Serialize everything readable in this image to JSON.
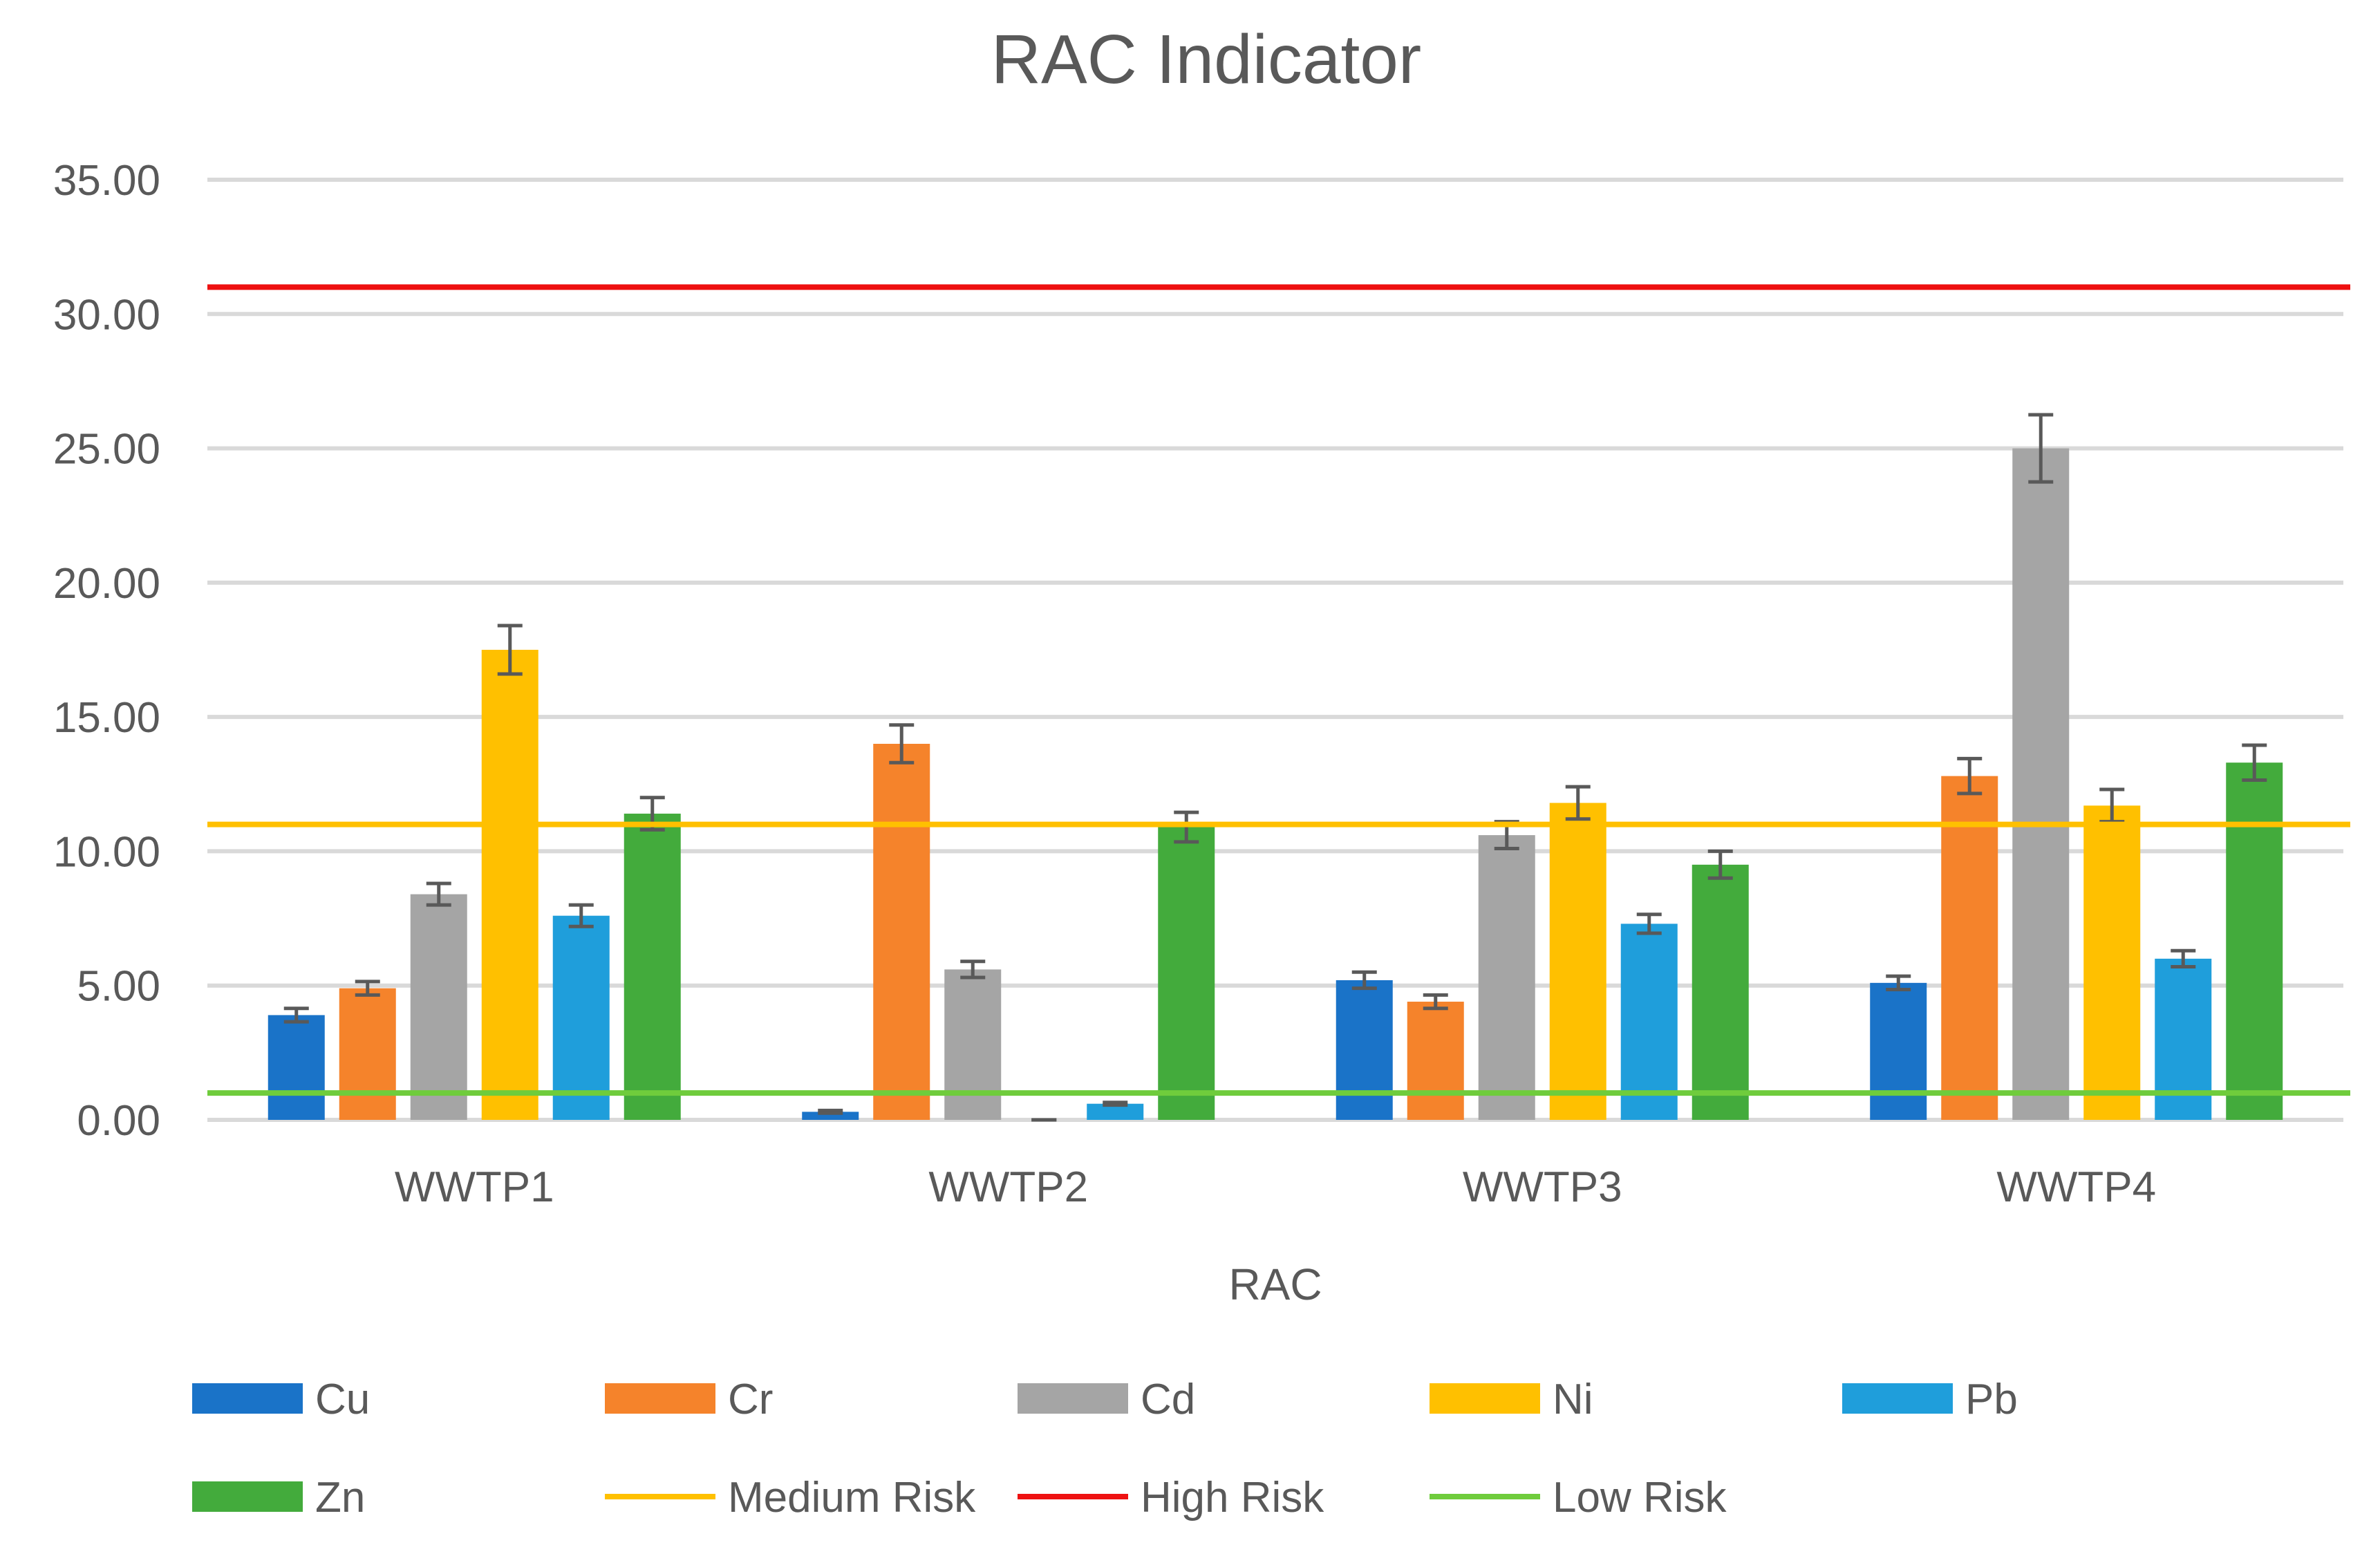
{
  "chart_data": {
    "type": "bar",
    "title": "RAC Indicator",
    "xlabel": "RAC",
    "ylabel": "",
    "ylim": [
      0,
      35
    ],
    "yticks": [
      0,
      5,
      10,
      15,
      20,
      25,
      30,
      35
    ],
    "ytick_labels": [
      "0.00",
      "5.00",
      "10.00",
      "15.00",
      "20.00",
      "25.00",
      "30.00",
      "35.00"
    ],
    "grid": true,
    "legend_position": "bottom",
    "categories": [
      "WWTP1",
      "WWTP2",
      "WWTP3",
      "WWTP4"
    ],
    "series": [
      {
        "name": "Cu",
        "color": "#1a73c8",
        "values": [
          3.9,
          0.3,
          5.2,
          5.1
        ],
        "errors": [
          0.25,
          0.05,
          0.3,
          0.25
        ]
      },
      {
        "name": "Cr",
        "color": "#f5832b",
        "values": [
          4.9,
          14.0,
          4.4,
          12.8
        ],
        "errors": [
          0.25,
          0.7,
          0.25,
          0.65
        ]
      },
      {
        "name": "Cd",
        "color": "#a5a5a5",
        "values": [
          8.4,
          5.6,
          10.6,
          25.0
        ],
        "errors": [
          0.4,
          0.3,
          0.5,
          1.25
        ]
      },
      {
        "name": "Ni",
        "color": "#ffc000",
        "values": [
          17.5,
          0.0,
          11.8,
          11.7
        ],
        "errors": [
          0.9,
          0.0,
          0.6,
          0.6
        ]
      },
      {
        "name": "Pb",
        "color": "#1f9edb",
        "values": [
          7.6,
          0.6,
          7.3,
          6.0
        ],
        "errors": [
          0.4,
          0.05,
          0.35,
          0.3
        ]
      },
      {
        "name": "Zn",
        "color": "#43ab3c",
        "values": [
          11.4,
          10.9,
          9.5,
          13.3
        ],
        "errors": [
          0.6,
          0.55,
          0.5,
          0.65
        ]
      }
    ],
    "reference_lines": [
      {
        "name": "Medium Risk",
        "value": 11.0,
        "color": "#ffc000"
      },
      {
        "name": "High Risk",
        "value": 31.0,
        "color": "#ee1111"
      },
      {
        "name": "Low Risk",
        "value": 1.0,
        "color": "#6fcc3c"
      }
    ],
    "legend_rows": [
      [
        "Cu",
        "Cr",
        "Cd",
        "Ni",
        "Pb"
      ],
      [
        "Zn",
        "Medium Risk",
        "High Risk",
        "Low Risk"
      ]
    ]
  }
}
